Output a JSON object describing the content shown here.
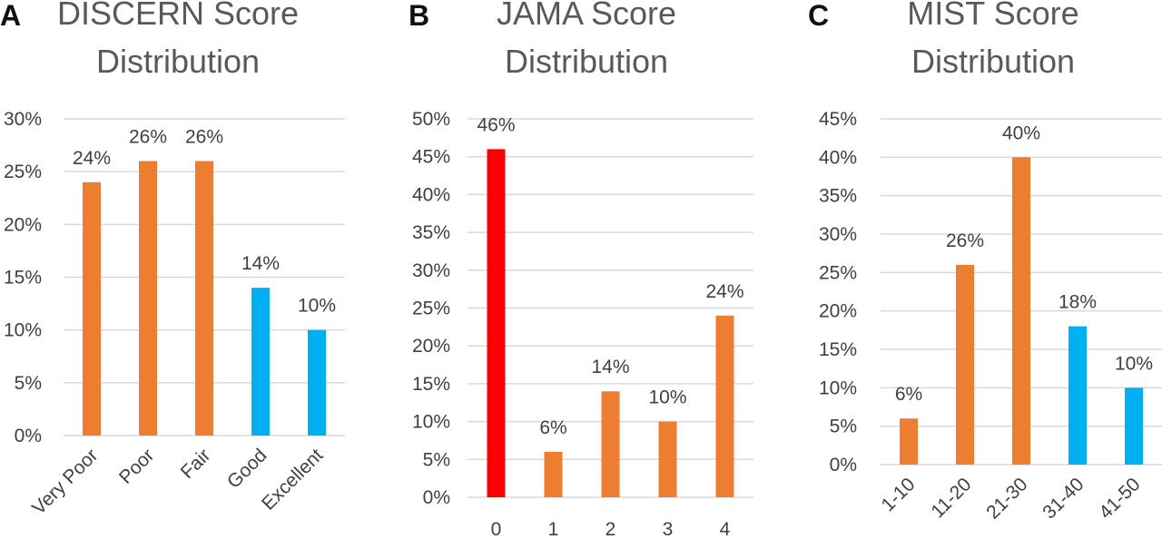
{
  "chart_data": [
    {
      "panel": "A",
      "type": "bar",
      "title": [
        "DISCERN Score",
        "Distribution"
      ],
      "categories": [
        "Very Poor",
        "Poor",
        "Fair",
        "Good",
        "Excellent"
      ],
      "values": [
        24,
        26,
        26,
        14,
        10
      ],
      "value_labels": [
        "24%",
        "26%",
        "26%",
        "14%",
        "10%"
      ],
      "bar_colors": [
        "#ED7D31",
        "#ED7D31",
        "#ED7D31",
        "#00B0F0",
        "#00B0F0"
      ],
      "yticks": [
        "0%",
        "5%",
        "10%",
        "15%",
        "20%",
        "25%",
        "30%"
      ],
      "ylim": [
        0,
        30
      ],
      "grid": true,
      "xlabel_rotation": "45deg"
    },
    {
      "panel": "B",
      "type": "bar",
      "title": [
        "JAMA Score",
        "Distribution"
      ],
      "categories": [
        "0",
        "1",
        "2",
        "3",
        "4"
      ],
      "values": [
        46,
        6,
        14,
        10,
        24
      ],
      "value_labels": [
        "46%",
        "6%",
        "14%",
        "10%",
        "24%"
      ],
      "bar_colors": [
        "#FF0000",
        "#ED7D31",
        "#ED7D31",
        "#ED7D31",
        "#ED7D31"
      ],
      "yticks": [
        "0%",
        "5%",
        "10%",
        "15%",
        "20%",
        "25%",
        "30%",
        "35%",
        "40%",
        "45%",
        "50%"
      ],
      "ylim": [
        0,
        50
      ],
      "grid": true,
      "xlabel_rotation": "0deg"
    },
    {
      "panel": "C",
      "type": "bar",
      "title": [
        "MIST Score",
        "Distribution"
      ],
      "categories": [
        "1-10",
        "11-20",
        "21-30",
        "31-40",
        "41-50"
      ],
      "values": [
        6,
        26,
        40,
        18,
        10
      ],
      "value_labels": [
        "6%",
        "26%",
        "40%",
        "18%",
        "10%"
      ],
      "bar_colors": [
        "#ED7D31",
        "#ED7D31",
        "#ED7D31",
        "#00B0F0",
        "#00B0F0"
      ],
      "yticks": [
        "0%",
        "5%",
        "10%",
        "15%",
        "20%",
        "25%",
        "30%",
        "35%",
        "40%",
        "45%"
      ],
      "ylim": [
        0,
        45
      ],
      "grid": true,
      "xlabel_rotation": "45deg"
    }
  ]
}
